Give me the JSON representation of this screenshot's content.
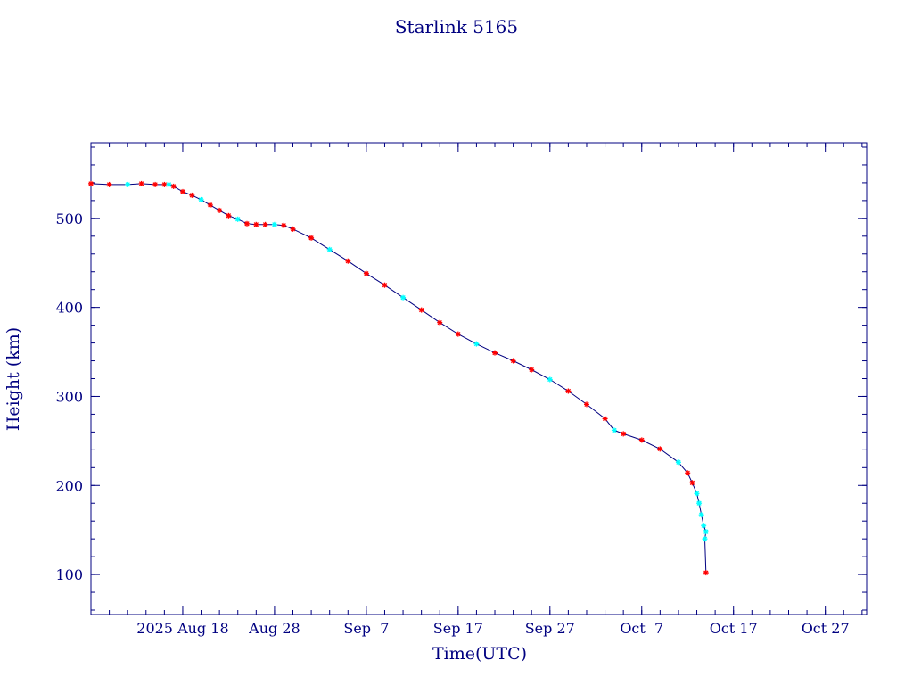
{
  "chart_data": {
    "type": "scatter",
    "title": "Starlink 5165",
    "xlabel": "Time(UTC)",
    "ylabel": "Height (km)",
    "x_axis_type": "date",
    "xlim": [
      "2025-08-08T00:00",
      "2025-10-31T12:00"
    ],
    "ylim": [
      55,
      585
    ],
    "x_ticks": [
      {
        "date": "2025-08-18",
        "label": "2025 Aug 18"
      },
      {
        "date": "2025-08-28",
        "label": "Aug 28"
      },
      {
        "date": "2025-09-07",
        "label": "Sep  7"
      },
      {
        "date": "2025-09-17",
        "label": "Sep 17"
      },
      {
        "date": "2025-09-27",
        "label": "Sep 27"
      },
      {
        "date": "2025-10-07",
        "label": "Oct  7"
      },
      {
        "date": "2025-10-17",
        "label": "Oct 17"
      },
      {
        "date": "2025-10-27",
        "label": "Oct 27"
      }
    ],
    "y_ticks": [
      100,
      200,
      300,
      400,
      500
    ],
    "colors": {
      "axis": "#000080",
      "text": "#000080",
      "line": "#000080",
      "marker_red": "#ff0000",
      "marker_cyan": "#00ffff"
    },
    "series": [
      {
        "marker": "asterisk",
        "data": [
          [
            "2025-08-08T00:00",
            539
          ],
          [
            "2025-08-10T00:00",
            538
          ],
          [
            "2025-08-12T00:00",
            538
          ],
          [
            "2025-08-13T12:00",
            539
          ],
          [
            "2025-08-15T00:00",
            538
          ],
          [
            "2025-08-16T00:00",
            538
          ],
          [
            "2025-08-16T12:00",
            538
          ],
          [
            "2025-08-17T00:00",
            536
          ],
          [
            "2025-08-18T00:00",
            530
          ],
          [
            "2025-08-19T00:00",
            526
          ],
          [
            "2025-08-20T00:00",
            521
          ],
          [
            "2025-08-21T00:00",
            515
          ],
          [
            "2025-08-22T00:00",
            509
          ],
          [
            "2025-08-23T00:00",
            503
          ],
          [
            "2025-08-24T00:00",
            499
          ],
          [
            "2025-08-25T00:00",
            494
          ],
          [
            "2025-08-26T00:00",
            493
          ],
          [
            "2025-08-27T00:00",
            493
          ],
          [
            "2025-08-28T00:00",
            493
          ],
          [
            "2025-08-29T00:00",
            492
          ],
          [
            "2025-08-30T00:00",
            488
          ],
          [
            "2025-09-01T00:00",
            478
          ],
          [
            "2025-09-03T00:00",
            465
          ],
          [
            "2025-09-05T00:00",
            452
          ],
          [
            "2025-09-07T00:00",
            438
          ],
          [
            "2025-09-09T00:00",
            425
          ],
          [
            "2025-09-11T00:00",
            411
          ],
          [
            "2025-09-13T00:00",
            397
          ],
          [
            "2025-09-15T00:00",
            383
          ],
          [
            "2025-09-17T00:00",
            370
          ],
          [
            "2025-09-19T00:00",
            359
          ],
          [
            "2025-09-21T00:00",
            349
          ],
          [
            "2025-09-23T00:00",
            340
          ],
          [
            "2025-09-25T00:00",
            330
          ],
          [
            "2025-09-27T00:00",
            319
          ],
          [
            "2025-09-29T00:00",
            306
          ],
          [
            "2025-10-01T00:00",
            291
          ],
          [
            "2025-10-03T00:00",
            275
          ],
          [
            "2025-10-04T00:00",
            262
          ],
          [
            "2025-10-05T00:00",
            258
          ],
          [
            "2025-10-07T00:00",
            251
          ],
          [
            "2025-10-09T00:00",
            241
          ],
          [
            "2025-10-11T00:00",
            226
          ],
          [
            "2025-10-12T00:00",
            214
          ],
          [
            "2025-10-12T12:00",
            203
          ],
          [
            "2025-10-13T00:00",
            191
          ],
          [
            "2025-10-13T06:00",
            180
          ],
          [
            "2025-10-13T12:00",
            167
          ],
          [
            "2025-10-13T18:00",
            155
          ],
          [
            "2025-10-14T00:00",
            148
          ],
          [
            "2025-10-13T21:00",
            140
          ],
          [
            "2025-10-14T00:00",
            102
          ]
        ]
      }
    ]
  }
}
